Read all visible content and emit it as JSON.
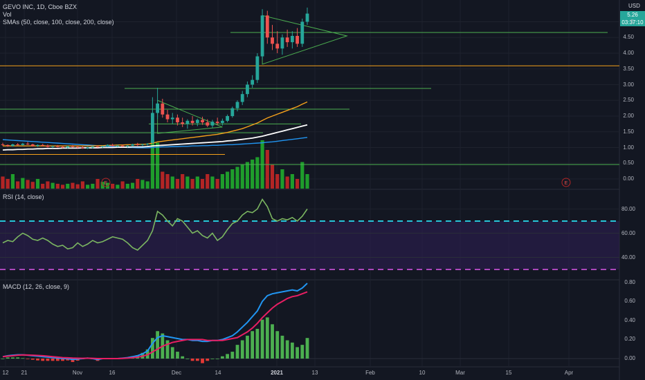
{
  "header": {
    "symbol_line": "GEVO INC, 1D, Cboe BZX",
    "vol_line": "Vol",
    "sma_line": "SMAs (50, close, 100, close, 200, close)",
    "currency": "USD",
    "last_price": "5.26",
    "countdown": "03:37:10"
  },
  "rsi_label": "RSI (14, close)",
  "macd_label": "MACD (12, 26, close, 9)",
  "colors": {
    "up": "#26a69a",
    "down": "#ef5350",
    "vol_up": "#1f9d2c",
    "vol_down": "#b32525",
    "sma50": "#f7a21b",
    "sma100": "#ffffff",
    "sma200": "#2196f3",
    "rsi": "#7bb661",
    "rsi_band": "#2a1e4a",
    "macd": "#2196f3",
    "signal": "#e91e63",
    "hist_up": "#4caf50",
    "hist_down": "#e53935",
    "trendline": "#4caf50",
    "orange_line": "#f7a21b"
  },
  "price_axis": [
    "5",
    "4.50",
    "4.00",
    "3.50",
    "3.00",
    "2.50",
    "2.00",
    "1.50",
    "1.00",
    "0.50",
    "0.00"
  ],
  "rsi_axis": [
    "80.00",
    "60.00",
    "40.00"
  ],
  "macd_axis": [
    "0.80",
    "0.60",
    "0.40",
    "0.20",
    "0.00"
  ],
  "x_axis": [
    {
      "t": "12",
      "bold": false
    },
    {
      "t": "21",
      "bold": false
    },
    {
      "t": "Nov",
      "bold": false
    },
    {
      "t": "16",
      "bold": false
    },
    {
      "t": "Dec",
      "bold": false
    },
    {
      "t": "14",
      "bold": false
    },
    {
      "t": "2021",
      "bold": true
    },
    {
      "t": "13",
      "bold": false
    },
    {
      "t": "Feb",
      "bold": false
    },
    {
      "t": "10",
      "bold": false
    },
    {
      "t": "Mar",
      "bold": false
    },
    {
      "t": "15",
      "bold": false
    },
    {
      "t": "Apr",
      "bold": false
    }
  ],
  "earnings_marker": "E",
  "chart_data": {
    "type": "candlestick",
    "title": "GEVO INC, 1D, Cboe BZX",
    "candles": [
      [
        1.1,
        1.15,
        1.05,
        1.08
      ],
      [
        1.08,
        1.1,
        1.02,
        1.05
      ],
      [
        1.05,
        1.12,
        1.03,
        1.1
      ],
      [
        1.1,
        1.14,
        1.06,
        1.08
      ],
      [
        1.08,
        1.15,
        1.05,
        1.12
      ],
      [
        1.12,
        1.18,
        1.08,
        1.1
      ],
      [
        1.1,
        1.12,
        1.03,
        1.05
      ],
      [
        1.05,
        1.1,
        1.02,
        1.08
      ],
      [
        1.08,
        1.12,
        1.04,
        1.06
      ],
      [
        1.06,
        1.1,
        1.0,
        1.02
      ],
      [
        1.02,
        1.06,
        0.98,
        1.04
      ],
      [
        1.04,
        1.08,
        1.0,
        1.02
      ],
      [
        1.02,
        1.05,
        0.98,
        1.0
      ],
      [
        1.0,
        1.06,
        0.97,
        1.04
      ],
      [
        1.04,
        1.08,
        1.0,
        1.02
      ],
      [
        1.02,
        1.05,
        0.98,
        1.0
      ],
      [
        1.0,
        1.04,
        0.96,
        0.98
      ],
      [
        0.98,
        1.02,
        0.95,
        1.0
      ],
      [
        1.0,
        1.05,
        0.97,
        1.03
      ],
      [
        1.03,
        1.07,
        1.0,
        1.02
      ],
      [
        1.02,
        1.06,
        0.99,
        1.04
      ],
      [
        1.04,
        1.1,
        1.01,
        1.08
      ],
      [
        1.08,
        1.12,
        1.03,
        1.05
      ],
      [
        1.05,
        1.09,
        1.01,
        1.06
      ],
      [
        1.06,
        1.1,
        1.02,
        1.04
      ],
      [
        1.04,
        1.08,
        1.0,
        1.06
      ],
      [
        1.06,
        1.12,
        1.03,
        1.1
      ],
      [
        1.1,
        1.15,
        1.05,
        1.08
      ],
      [
        1.08,
        1.12,
        1.04,
        1.1
      ],
      [
        1.1,
        1.14,
        1.06,
        1.12
      ],
      [
        1.15,
        2.6,
        1.12,
        2.1
      ],
      [
        2.1,
        2.9,
        1.9,
        2.4
      ],
      [
        2.4,
        2.55,
        1.95,
        2.05
      ],
      [
        2.05,
        2.2,
        1.8,
        1.9
      ],
      [
        1.9,
        2.1,
        1.75,
        1.95
      ],
      [
        1.95,
        2.05,
        1.7,
        1.8
      ],
      [
        1.8,
        1.95,
        1.65,
        1.75
      ],
      [
        1.75,
        1.9,
        1.6,
        1.85
      ],
      [
        1.85,
        2.0,
        1.7,
        1.78
      ],
      [
        1.78,
        1.92,
        1.68,
        1.88
      ],
      [
        1.88,
        1.98,
        1.72,
        1.8
      ],
      [
        1.8,
        1.9,
        1.65,
        1.7
      ],
      [
        1.7,
        1.88,
        1.62,
        1.82
      ],
      [
        1.82,
        1.95,
        1.72,
        1.78
      ],
      [
        1.78,
        1.92,
        1.7,
        1.85
      ],
      [
        1.85,
        2.05,
        1.8,
        2.0
      ],
      [
        2.0,
        2.3,
        1.95,
        2.25
      ],
      [
        2.25,
        2.5,
        2.15,
        2.45
      ],
      [
        2.45,
        2.8,
        2.35,
        2.7
      ],
      [
        2.7,
        3.1,
        2.6,
        3.0
      ],
      [
        3.0,
        3.3,
        2.9,
        3.15
      ],
      [
        3.15,
        4.0,
        3.05,
        3.9
      ],
      [
        3.9,
        5.4,
        3.8,
        5.2
      ],
      [
        5.2,
        5.35,
        4.3,
        4.5
      ],
      [
        4.5,
        4.9,
        4.1,
        4.3
      ],
      [
        4.3,
        4.7,
        4.0,
        4.15
      ],
      [
        4.15,
        4.6,
        3.95,
        4.5
      ],
      [
        4.5,
        4.75,
        4.2,
        4.35
      ],
      [
        4.35,
        4.7,
        4.15,
        4.55
      ],
      [
        4.55,
        4.8,
        4.2,
        4.3
      ],
      [
        4.3,
        5.1,
        4.2,
        5.0
      ],
      [
        5.0,
        5.45,
        4.9,
        5.26
      ]
    ],
    "volume_relative": [
      0.25,
      0.2,
      0.3,
      0.15,
      0.22,
      0.18,
      0.14,
      0.2,
      0.1,
      0.15,
      0.12,
      0.1,
      0.08,
      0.1,
      0.12,
      0.09,
      0.15,
      0.08,
      0.1,
      0.2,
      0.14,
      0.12,
      0.1,
      0.08,
      0.15,
      0.1,
      0.12,
      0.2,
      0.18,
      0.15,
      1.0,
      0.95,
      0.35,
      0.3,
      0.25,
      0.2,
      0.3,
      0.25,
      0.2,
      0.25,
      0.2,
      0.3,
      0.25,
      0.2,
      0.3,
      0.35,
      0.4,
      0.45,
      0.5,
      0.55,
      0.6,
      0.65,
      1.0,
      0.8,
      0.5,
      0.3,
      0.4,
      0.25,
      0.3,
      0.2,
      0.55,
      0.3
    ],
    "sma50": [
      1.05,
      1.05,
      1.05,
      1.05,
      1.05,
      1.05,
      1.05,
      1.05,
      1.05,
      1.05,
      1.05,
      1.05,
      1.05,
      1.05,
      1.05,
      1.05,
      1.05,
      1.05,
      1.05,
      1.06,
      1.06,
      1.07,
      1.07,
      1.08,
      1.08,
      1.09,
      1.09,
      1.1,
      1.1,
      1.11,
      1.14,
      1.18,
      1.2,
      1.22,
      1.24,
      1.26,
      1.28,
      1.3,
      1.32,
      1.34,
      1.36,
      1.38,
      1.4,
      1.42,
      1.45,
      1.48,
      1.52,
      1.56,
      1.6,
      1.66,
      1.72,
      1.78,
      1.86,
      1.94,
      2.0,
      2.06,
      2.12,
      2.18,
      2.24,
      2.3,
      2.38,
      2.45
    ],
    "sma100": [
      0.92,
      0.93,
      0.93,
      0.94,
      0.94,
      0.95,
      0.95,
      0.96,
      0.96,
      0.97,
      0.97,
      0.97,
      0.98,
      0.98,
      0.98,
      0.98,
      0.99,
      0.99,
      0.99,
      0.99,
      1.0,
      1.0,
      1.0,
      1.01,
      1.01,
      1.01,
      1.02,
      1.02,
      1.02,
      1.03,
      1.05,
      1.06,
      1.07,
      1.08,
      1.09,
      1.1,
      1.11,
      1.12,
      1.13,
      1.14,
      1.15,
      1.16,
      1.17,
      1.18,
      1.19,
      1.21,
      1.22,
      1.24,
      1.26,
      1.28,
      1.3,
      1.33,
      1.36,
      1.4,
      1.44,
      1.48,
      1.52,
      1.56,
      1.6,
      1.64,
      1.68,
      1.72
    ],
    "sma200": [
      1.25,
      1.24,
      1.23,
      1.22,
      1.21,
      1.2,
      1.19,
      1.18,
      1.17,
      1.16,
      1.15,
      1.14,
      1.13,
      1.12,
      1.11,
      1.1,
      1.09,
      1.08,
      1.07,
      1.06,
      1.05,
      1.04,
      1.03,
      1.02,
      1.01,
      1.0,
      1.0,
      0.99,
      0.99,
      0.99,
      1.0,
      1.01,
      1.02,
      1.02,
      1.03,
      1.03,
      1.04,
      1.04,
      1.05,
      1.05,
      1.06,
      1.06,
      1.07,
      1.07,
      1.08,
      1.09,
      1.09,
      1.1,
      1.11,
      1.12,
      1.13,
      1.14,
      1.15,
      1.17,
      1.18,
      1.2,
      1.22,
      1.24,
      1.26,
      1.28,
      1.3,
      1.32
    ],
    "rsi": [
      52,
      54,
      53,
      57,
      60,
      58,
      55,
      54,
      56,
      54,
      51,
      49,
      50,
      47,
      48,
      52,
      49,
      51,
      54,
      52,
      53,
      55,
      57,
      56,
      55,
      52,
      48,
      46,
      50,
      54,
      62,
      78,
      75,
      70,
      66,
      72,
      70,
      65,
      60,
      62,
      58,
      56,
      60,
      54,
      57,
      63,
      68,
      70,
      75,
      78,
      77,
      80,
      88,
      82,
      72,
      70,
      72,
      71,
      73,
      70,
      74,
      80
    ],
    "macd": [
      0.02,
      0.03,
      0.035,
      0.04,
      0.04,
      0.035,
      0.03,
      0.025,
      0.02,
      0.015,
      0.01,
      0.005,
      0.0,
      0.0,
      -0.01,
      -0.005,
      0.0,
      0.005,
      0.0,
      -0.01,
      0.0,
      0.0,
      0.0,
      0.0,
      0.005,
      0.01,
      0.02,
      0.03,
      0.05,
      0.08,
      0.16,
      0.22,
      0.24,
      0.23,
      0.22,
      0.21,
      0.2,
      0.2,
      0.19,
      0.19,
      0.18,
      0.18,
      0.19,
      0.19,
      0.2,
      0.22,
      0.24,
      0.28,
      0.33,
      0.38,
      0.44,
      0.5,
      0.6,
      0.66,
      0.68,
      0.69,
      0.7,
      0.71,
      0.72,
      0.71,
      0.74,
      0.79
    ],
    "signal": [
      0.02,
      0.025,
      0.03,
      0.035,
      0.038,
      0.037,
      0.035,
      0.033,
      0.03,
      0.025,
      0.02,
      0.015,
      0.01,
      0.008,
      0.005,
      0.004,
      0.003,
      0.004,
      0.003,
      0.0,
      0.0,
      0.0,
      0.0,
      0.0,
      0.002,
      0.005,
      0.01,
      0.015,
      0.025,
      0.04,
      0.07,
      0.1,
      0.13,
      0.15,
      0.17,
      0.18,
      0.19,
      0.2,
      0.2,
      0.2,
      0.2,
      0.19,
      0.19,
      0.19,
      0.19,
      0.2,
      0.21,
      0.22,
      0.25,
      0.28,
      0.32,
      0.37,
      0.43,
      0.48,
      0.53,
      0.57,
      0.6,
      0.63,
      0.65,
      0.66,
      0.68,
      0.7
    ],
    "horizontal_lines": [
      {
        "price": 4.66,
        "color": "#4caf50"
      },
      {
        "price": 3.6,
        "color": "#f7a21b"
      },
      {
        "price": 2.88,
        "color": "#4caf50"
      },
      {
        "price": 2.22,
        "color": "#4caf50"
      },
      {
        "price": 1.75,
        "color": "#4caf50"
      },
      {
        "price": 1.47,
        "color": "#4caf50"
      },
      {
        "price": 0.78,
        "color": "#f7a21b"
      },
      {
        "price": 0.46,
        "color": "#4caf50"
      }
    ],
    "rsi_levels": [
      70,
      30
    ],
    "ylim_price": [
      0.0,
      5.0
    ],
    "ylim_rsi": [
      30,
      90
    ],
    "ylim_macd": [
      -0.05,
      0.8
    ]
  }
}
